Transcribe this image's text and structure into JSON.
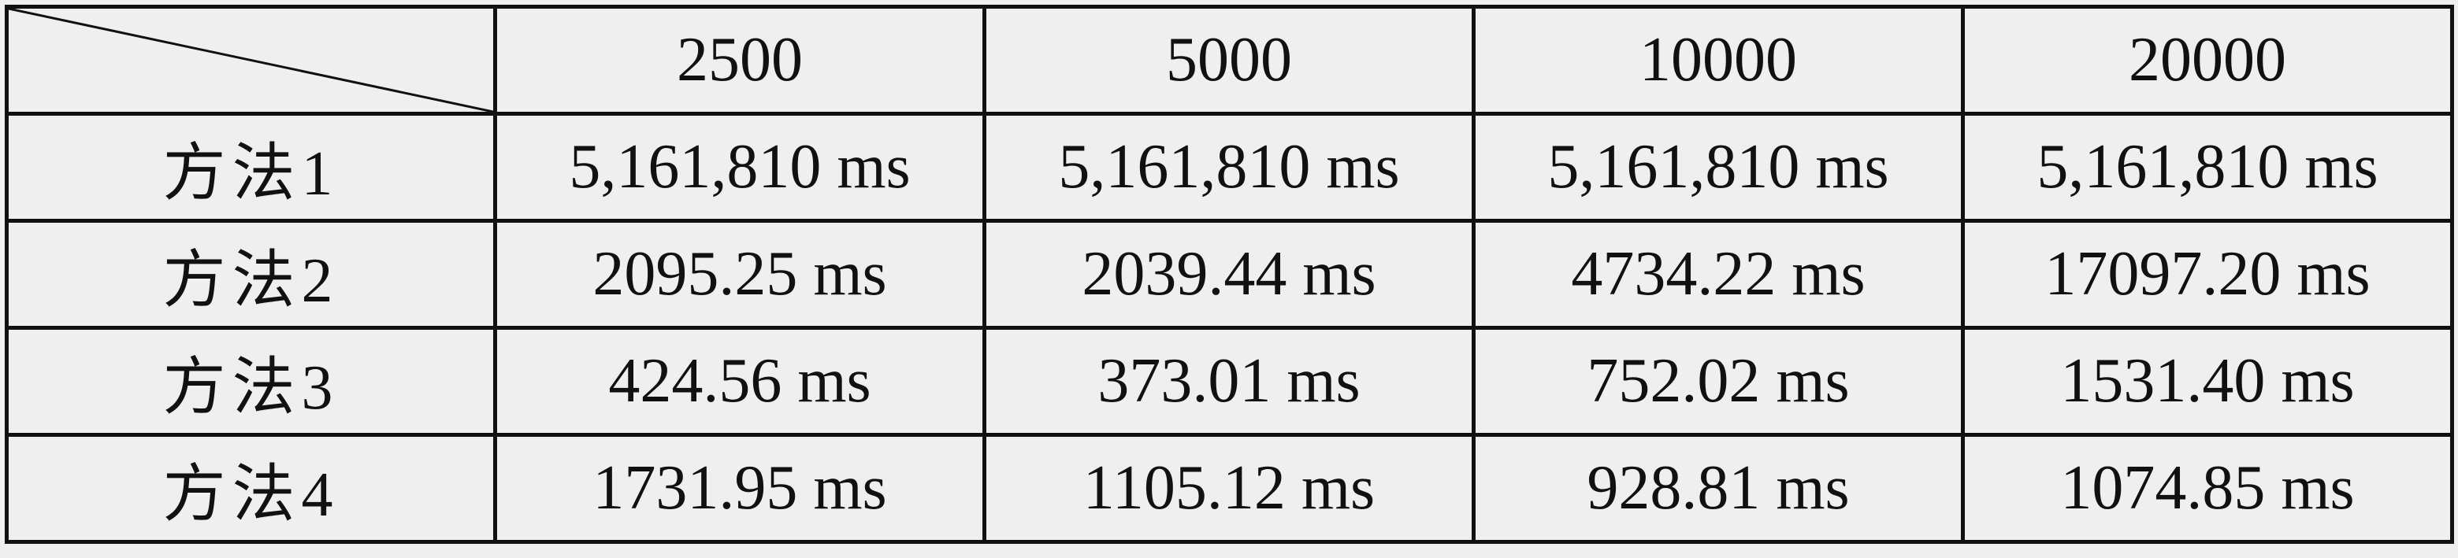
{
  "table": {
    "columns": [
      "2500",
      "5000",
      "10000",
      "20000"
    ],
    "rows": [
      {
        "label": "方法1",
        "values": [
          "5,161,810 ms",
          "5,161,810 ms",
          "5,161,810 ms",
          "5,161,810 ms"
        ]
      },
      {
        "label": "方法2",
        "values": [
          "2095.25 ms",
          "2039.44 ms",
          "4734.22 ms",
          "17097.20 ms"
        ]
      },
      {
        "label": "方法3",
        "values": [
          "424.56 ms",
          "373.01 ms",
          "752.02 ms",
          "1531.40 ms"
        ]
      },
      {
        "label": "方法4",
        "values": [
          "1731.95 ms",
          "1105.12 ms",
          "928.81 ms",
          "1074.85 ms"
        ]
      }
    ]
  },
  "chart_data": {
    "type": "table",
    "categories": [
      "2500",
      "5000",
      "10000",
      "20000"
    ],
    "series": [
      {
        "name": "方法1",
        "values": [
          5161810,
          5161810,
          5161810,
          5161810
        ]
      },
      {
        "name": "方法2",
        "values": [
          2095.25,
          2039.44,
          4734.22,
          17097.2
        ]
      },
      {
        "name": "方法3",
        "values": [
          424.56,
          373.01,
          752.02,
          1531.4
        ]
      },
      {
        "name": "方法4",
        "values": [
          1731.95,
          1105.12,
          928.81,
          1074.85
        ]
      }
    ],
    "unit": "ms"
  }
}
